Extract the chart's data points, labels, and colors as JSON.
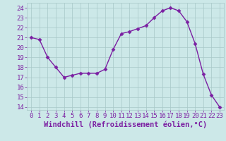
{
  "x": [
    0,
    1,
    2,
    3,
    4,
    5,
    6,
    7,
    8,
    9,
    10,
    11,
    12,
    13,
    14,
    15,
    16,
    17,
    18,
    19,
    20,
    21,
    22,
    23
  ],
  "y": [
    21.0,
    20.8,
    19.0,
    18.0,
    17.0,
    17.2,
    17.4,
    17.4,
    17.4,
    17.8,
    19.8,
    21.4,
    21.6,
    21.9,
    22.2,
    23.0,
    23.7,
    24.0,
    23.7,
    22.6,
    20.4,
    17.3,
    15.2,
    14.0
  ],
  "line_color": "#7b1fa2",
  "marker": "D",
  "marker_size": 2.5,
  "bg_color": "#cce8e8",
  "grid_color": "#a8c8c8",
  "xlabel": "Windchill (Refroidissement éolien,°C)",
  "ylim": [
    13.7,
    24.5
  ],
  "xlim": [
    -0.5,
    23.5
  ],
  "yticks": [
    14,
    15,
    16,
    17,
    18,
    19,
    20,
    21,
    22,
    23,
    24
  ],
  "xticks": [
    0,
    1,
    2,
    3,
    4,
    5,
    6,
    7,
    8,
    9,
    10,
    11,
    12,
    13,
    14,
    15,
    16,
    17,
    18,
    19,
    20,
    21,
    22,
    23
  ],
  "tick_color": "#7b1fa2",
  "label_color": "#7b1fa2",
  "tick_fontsize": 6.5,
  "xlabel_fontsize": 7.5,
  "linewidth": 1.0
}
